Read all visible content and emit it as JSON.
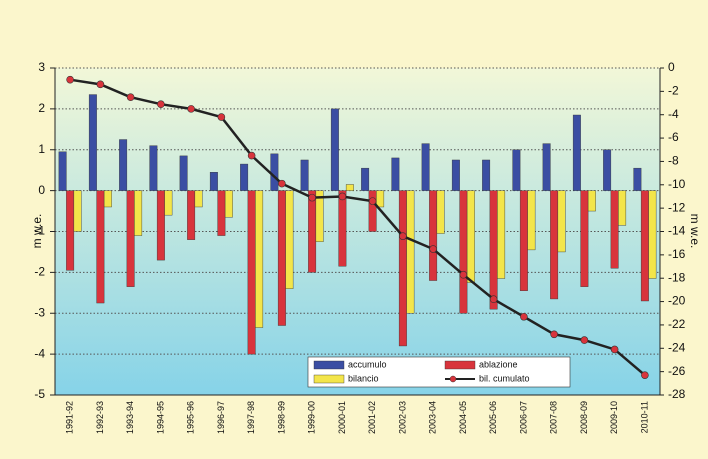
{
  "chart_data": {
    "type": "bar",
    "ylabel": "m w.e.",
    "y2label": "m w.e.",
    "categories": [
      "1991-92",
      "1992-93",
      "1993-94",
      "1994-95",
      "1995-96",
      "1996-97",
      "1997-98",
      "1998-99",
      "1999-00",
      "2000-01",
      "2001-02",
      "2002-03",
      "2003-04",
      "2004-05",
      "2005-06",
      "2006-07",
      "2007-08",
      "2008-09",
      "2009-10",
      "2010-11"
    ],
    "series": [
      {
        "name": "accumulo",
        "color": "#3b4ea3",
        "values": [
          0.95,
          2.35,
          1.25,
          1.1,
          0.85,
          0.45,
          0.65,
          0.9,
          0.75,
          2.0,
          0.55,
          0.8,
          1.15,
          0.75,
          0.75,
          1.0,
          1.15,
          1.85,
          1.0,
          0.55
        ]
      },
      {
        "name": "ablazione",
        "color": "#d8343c",
        "values": [
          -1.95,
          -2.75,
          -2.35,
          -1.7,
          -1.2,
          -1.1,
          -4.0,
          -3.3,
          -2.0,
          -1.85,
          -1.0,
          -3.8,
          -2.2,
          -3.0,
          -2.9,
          -2.45,
          -2.65,
          -2.35,
          -1.9,
          -2.7
        ]
      },
      {
        "name": "bilancio",
        "color": "#f3e54a",
        "values": [
          -1.0,
          -0.4,
          -1.1,
          -0.6,
          -0.4,
          -0.65,
          -3.35,
          -2.4,
          -1.25,
          0.15,
          -0.4,
          -3.0,
          -1.05,
          -2.25,
          -2.15,
          -1.45,
          -1.5,
          -0.5,
          -0.85,
          -2.15
        ]
      },
      {
        "name": "bil. cumulato",
        "color": "#222222",
        "marker_color": "#d8343c",
        "type": "line",
        "axis": "y2",
        "values": [
          -1.0,
          -1.4,
          -2.5,
          -3.1,
          -3.5,
          -4.2,
          -7.5,
          -9.9,
          -11.1,
          -11.0,
          -11.4,
          -14.4,
          -15.5,
          -17.7,
          -19.8,
          -21.3,
          -22.8,
          -23.3,
          -24.1,
          -26.3
        ]
      }
    ],
    "ylim": [
      -5,
      3
    ],
    "yticks": [
      3,
      2,
      1,
      0,
      -1,
      -2,
      -3,
      -4,
      -5
    ],
    "y2lim": [
      -28,
      0
    ],
    "y2ticks": [
      0,
      -2,
      -4,
      -6,
      -8,
      -10,
      -12,
      -14,
      -16,
      -18,
      -20,
      -22,
      -24,
      -26,
      -28
    ],
    "grid": true,
    "legend": "lower right"
  }
}
